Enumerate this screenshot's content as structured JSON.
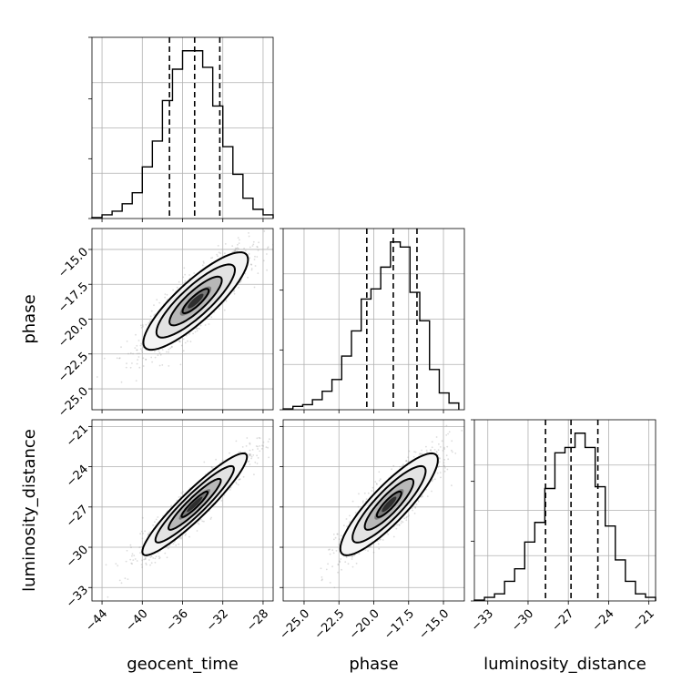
{
  "chart_data": {
    "type": "corner",
    "parameters": [
      "geocent_time",
      "phase",
      "luminosity_distance"
    ],
    "axes": {
      "geocent_time": {
        "range": [
          -45,
          -27
        ],
        "ticks": [
          -44,
          -40,
          -36,
          -32,
          -28
        ],
        "tick_labels": [
          "−44",
          "−40",
          "−36",
          "−32",
          "−28"
        ]
      },
      "phase": {
        "range": [
          -26.5,
          -13.5
        ],
        "ticks": [
          -25.0,
          -22.5,
          -20.0,
          -17.5,
          -15.0
        ],
        "tick_labels": [
          "−25.0",
          "−22.5",
          "−20.0",
          "−17.5",
          "−15.0"
        ]
      },
      "luminosity_distance": {
        "range": [
          -34,
          -20.5
        ],
        "ticks": [
          -33,
          -30,
          -27,
          -24,
          -21
        ],
        "tick_labels": [
          "−33",
          "−30",
          "−27",
          "−24",
          "−21"
        ]
      }
    },
    "axis_labels": {
      "x": [
        "geocent_time",
        "phase",
        "luminosity_distance"
      ],
      "y": [
        "",
        "phase",
        "luminosity_distance"
      ]
    },
    "marginals": [
      {
        "parameter": "geocent_time",
        "bin_edges": [
          -45,
          -44,
          -43,
          -42,
          -41,
          -40,
          -39,
          -38,
          -37,
          -36,
          -35,
          -34,
          -33,
          -32,
          -31,
          -30,
          -29,
          -28,
          -27
        ],
        "counts": [
          0.005,
          0.02,
          0.04,
          0.08,
          0.14,
          0.28,
          0.42,
          0.64,
          0.81,
          0.91,
          0.91,
          0.82,
          0.61,
          0.39,
          0.24,
          0.11,
          0.05,
          0.02
        ],
        "quantiles": [
          -37.3,
          -34.8,
          -32.3
        ]
      },
      {
        "parameter": "phase",
        "bin_edges": [
          -26.5,
          -25.8,
          -25.1,
          -24.4,
          -23.7,
          -23.0,
          -22.3,
          -21.6,
          -20.9,
          -20.2,
          -19.5,
          -18.8,
          -18.1,
          -17.4,
          -16.7,
          -16.0,
          -15.3,
          -14.6,
          -13.9
        ],
        "counts": [
          0.005,
          0.02,
          0.03,
          0.06,
          0.11,
          0.18,
          0.32,
          0.47,
          0.66,
          0.72,
          0.85,
          1.0,
          0.97,
          0.7,
          0.53,
          0.24,
          0.1,
          0.04
        ],
        "quantiles": [
          -20.5,
          -18.6,
          -16.9
        ]
      },
      {
        "parameter": "luminosity_distance",
        "bin_edges": [
          -34.0,
          -33.25,
          -32.5,
          -31.75,
          -31.0,
          -30.25,
          -29.5,
          -28.75,
          -28.0,
          -27.25,
          -26.5,
          -25.75,
          -25.0,
          -24.25,
          -23.5,
          -22.75,
          -22.0,
          -21.25,
          -20.5
        ],
        "counts": [
          0.005,
          0.02,
          0.04,
          0.11,
          0.18,
          0.33,
          0.44,
          0.63,
          0.83,
          0.86,
          0.94,
          0.86,
          0.64,
          0.42,
          0.23,
          0.11,
          0.04,
          0.02
        ],
        "quantiles": [
          -28.7,
          -26.8,
          -24.8
        ]
      }
    ],
    "joint": [
      {
        "x": "geocent_time",
        "y": "phase",
        "center": [
          -34.7,
          -18.7
        ],
        "sd": [
          2.6,
          1.75
        ],
        "corr": 0.85
      },
      {
        "x": "geocent_time",
        "y": "luminosity_distance",
        "center": [
          -34.8,
          -26.8
        ],
        "sd": [
          2.6,
          1.9
        ],
        "corr": 0.93
      },
      {
        "x": "phase",
        "y": "luminosity_distance",
        "center": [
          -18.9,
          -26.8
        ],
        "sd": [
          1.75,
          1.9
        ],
        "corr": 0.87
      }
    ],
    "grid": true
  }
}
